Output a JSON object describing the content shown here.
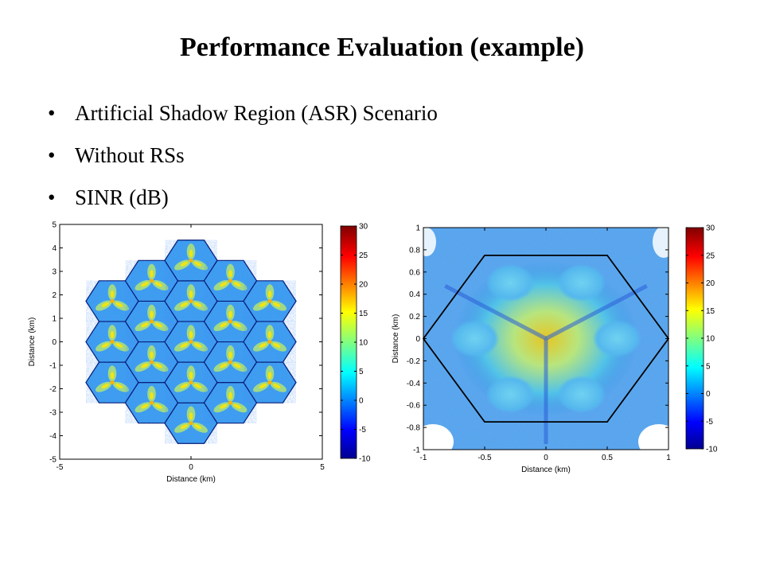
{
  "slide": {
    "title": "Performance Evaluation (example)",
    "bullets": [
      "Artificial Shadow Region (ASR) Scenario",
      "Without RSs",
      "SINR (dB)"
    ]
  },
  "chart_data": [
    {
      "type": "heatmap",
      "description_free": true,
      "title": "",
      "xlabel": "Distance (km)",
      "ylabel": "Distance (km)",
      "xlim": [
        -5,
        5
      ],
      "ylim": [
        -5,
        5
      ],
      "xticks": [
        "-5",
        "0",
        "5"
      ],
      "yticks": [
        "5",
        "4",
        "3",
        "2",
        "1",
        "0",
        "-1",
        "-2",
        "-3",
        "-4",
        "-5"
      ],
      "colorbar": {
        "min": -10,
        "max": 30,
        "ticks": [
          "30",
          "25",
          "20",
          "15",
          "10",
          "5",
          "0",
          "-5",
          "-10"
        ]
      },
      "colormap": [
        "#00008f",
        "#0000ff",
        "#0080ff",
        "#00ffff",
        "#80ff80",
        "#ffff00",
        "#ff8000",
        "#ff0000",
        "#800000"
      ],
      "cells": 19,
      "hex_radius_km": 1.0
    },
    {
      "type": "heatmap",
      "title": "",
      "xlabel": "Distance (km)",
      "ylabel": "Distance (km)",
      "xlim": [
        -1,
        1
      ],
      "ylim": [
        -1,
        1
      ],
      "xticks": [
        "-1",
        "-0.5",
        "0",
        "0.5",
        "1"
      ],
      "yticks": [
        "1",
        "0.8",
        "0.6",
        "0.4",
        "0.2",
        "0",
        "-0.2",
        "-0.4",
        "-0.6",
        "-0.8",
        "-1"
      ],
      "colorbar": {
        "min": -10,
        "max": 30,
        "ticks": [
          "30",
          "25",
          "20",
          "15",
          "10",
          "5",
          "0",
          "-5",
          "-10"
        ]
      },
      "colormap": [
        "#00008f",
        "#0000ff",
        "#0080ff",
        "#00ffff",
        "#80ff80",
        "#ffff00",
        "#ff8000",
        "#ff0000",
        "#800000"
      ],
      "shadow_regions": 6,
      "hex_radius_km": 1.0
    }
  ]
}
